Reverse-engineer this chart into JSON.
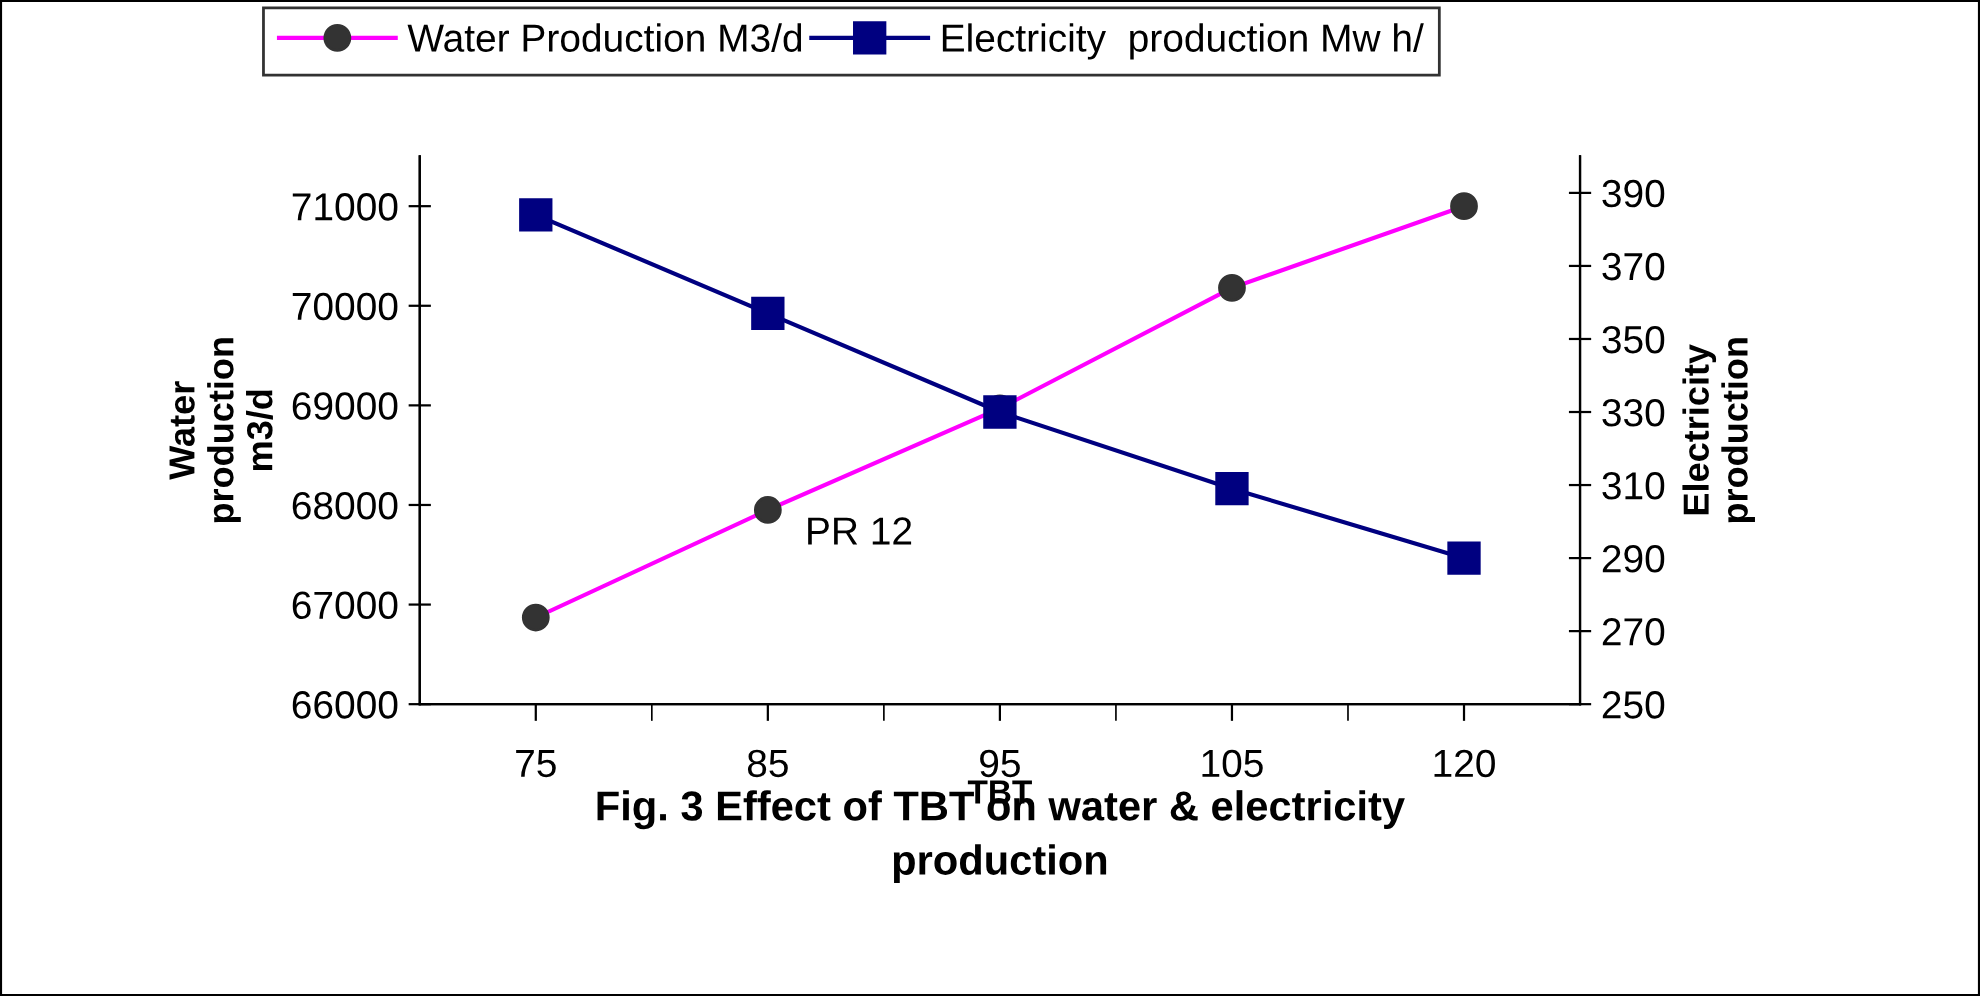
{
  "chart_data": {
    "type": "line",
    "title": "Fig. 3 Effect of TBT on water & electricity\nproduction",
    "xlabel": "TBT",
    "ylabel": "Water\nproduction\nm3/d",
    "y2label": "Electricity\nproduction",
    "categories": [
      "75",
      "85",
      "95",
      "105",
      "120"
    ],
    "series": [
      {
        "name": "Water Production M3/d",
        "color": "#ff00ff",
        "marker": "circle",
        "values": [
          66870,
          67950,
          68970,
          70180,
          71000
        ]
      },
      {
        "name": "Electricity  production Mw h/",
        "color": "#000080",
        "marker": "square",
        "axis": "y2",
        "values": [
          384,
          357,
          330,
          309,
          290
        ]
      }
    ],
    "ylim": [
      66000,
      71500
    ],
    "yticks": [
      66000,
      67000,
      68000,
      69000,
      70000,
      71000
    ],
    "y2lim": [
      250,
      400
    ],
    "y2ticks": [
      250,
      270,
      290,
      310,
      330,
      350,
      370,
      390
    ],
    "annotations": [
      "PR 12"
    ],
    "grid": false,
    "legend": "top"
  }
}
